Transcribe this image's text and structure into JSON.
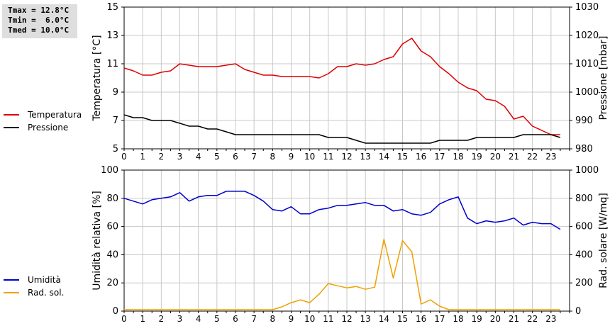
{
  "stats": {
    "lines": [
      "Tmax = 12.8°C",
      "Tmin =  6.0°C",
      "Tmed = 10.0°C"
    ]
  },
  "colors": {
    "temperature": "#dd0000",
    "pressure": "#000000",
    "humidity": "#0000cc",
    "radiation": "#f0a000"
  },
  "chart_data": [
    {
      "type": "line",
      "xlabel": "",
      "x_ticks": [
        "0",
        "1",
        "2",
        "3",
        "4",
        "5",
        "6",
        "7",
        "8",
        "9",
        "10",
        "11",
        "12",
        "13",
        "14",
        "15",
        "16",
        "17",
        "18",
        "19",
        "20",
        "21",
        "22",
        "23"
      ],
      "xlim": [
        0,
        24
      ],
      "ylabel": "Temperatura [°C]",
      "ylim": [
        5,
        15
      ],
      "y_ticks": [
        5,
        7,
        9,
        11,
        13,
        15
      ],
      "y2label": "Pressione [mbar]",
      "y2lim": [
        980,
        1030
      ],
      "y2_ticks": [
        980,
        990,
        1000,
        1010,
        1020,
        1030
      ],
      "grid": true,
      "legend": "left",
      "series": [
        {
          "name": "Temperatura",
          "axis": "left",
          "x": [
            0,
            0.5,
            1,
            1.5,
            2,
            2.5,
            3,
            3.5,
            4,
            4.5,
            5,
            5.5,
            6,
            6.5,
            7,
            7.5,
            8,
            8.5,
            9,
            9.5,
            10,
            10.5,
            11,
            11.5,
            12,
            12.5,
            13,
            13.5,
            14,
            14.5,
            15,
            15.5,
            16,
            16.5,
            17,
            17.5,
            18,
            18.5,
            19,
            19.5,
            20,
            20.5,
            21,
            21.5,
            22,
            22.5,
            23,
            23.5
          ],
          "values": [
            10.7,
            10.5,
            10.2,
            10.2,
            10.4,
            10.5,
            11.0,
            10.9,
            10.8,
            10.8,
            10.8,
            10.9,
            11.0,
            10.6,
            10.4,
            10.2,
            10.2,
            10.1,
            10.1,
            10.1,
            10.1,
            10.0,
            10.3,
            10.8,
            10.8,
            11.0,
            10.9,
            11.0,
            11.3,
            11.5,
            12.4,
            12.8,
            11.9,
            11.5,
            10.8,
            10.3,
            9.7,
            9.3,
            9.1,
            8.5,
            8.4,
            8.0,
            7.1,
            7.3,
            6.6,
            6.3,
            6.0,
            6.0
          ]
        },
        {
          "name": "Pressione",
          "axis": "right",
          "x": [
            0,
            0.5,
            1,
            1.5,
            2,
            2.5,
            3,
            3.5,
            4,
            4.5,
            5,
            5.5,
            6,
            6.5,
            7,
            7.5,
            8,
            8.5,
            9,
            9.5,
            10,
            10.5,
            11,
            11.5,
            12,
            12.5,
            13,
            13.5,
            14,
            14.5,
            15,
            15.5,
            16,
            16.5,
            17,
            17.5,
            18,
            18.5,
            19,
            19.5,
            20,
            20.5,
            21,
            21.5,
            22,
            22.5,
            23,
            23.5
          ],
          "values": [
            992,
            991,
            991,
            990,
            990,
            990,
            989,
            988,
            988,
            987,
            987,
            986,
            985,
            985,
            985,
            985,
            985,
            985,
            985,
            985,
            985,
            985,
            984,
            984,
            984,
            983,
            982,
            982,
            982,
            982,
            982,
            982,
            982,
            982,
            983,
            983,
            983,
            983,
            984,
            984,
            984,
            984,
            984,
            985,
            985,
            985,
            985,
            984
          ]
        }
      ]
    },
    {
      "type": "line",
      "xlabel": "",
      "x_ticks": [
        "0",
        "1",
        "2",
        "3",
        "4",
        "5",
        "6",
        "7",
        "8",
        "9",
        "10",
        "11",
        "12",
        "13",
        "14",
        "15",
        "16",
        "17",
        "18",
        "19",
        "20",
        "21",
        "22",
        "23"
      ],
      "xlim": [
        0,
        24
      ],
      "ylabel": "Umidità relativa [%]",
      "ylim": [
        0,
        100
      ],
      "y_ticks": [
        0,
        20,
        40,
        60,
        80,
        100
      ],
      "y2label": "Rad. solare [W/mq]",
      "y2lim": [
        0,
        1000
      ],
      "y2_ticks": [
        0,
        200,
        400,
        600,
        800,
        1000
      ],
      "grid": true,
      "legend": "left",
      "series": [
        {
          "name": "Umidità",
          "axis": "left",
          "x": [
            0,
            0.5,
            1,
            1.5,
            2,
            2.5,
            3,
            3.5,
            4,
            4.5,
            5,
            5.5,
            6,
            6.5,
            7,
            7.5,
            8,
            8.5,
            9,
            9.5,
            10,
            10.5,
            11,
            11.5,
            12,
            12.5,
            13,
            13.5,
            14,
            14.5,
            15,
            15.5,
            16,
            16.5,
            17,
            17.5,
            18,
            18.5,
            19,
            19.5,
            20,
            20.5,
            21,
            21.5,
            22,
            22.5,
            23,
            23.5
          ],
          "values": [
            80,
            78,
            76,
            79,
            80,
            81,
            84,
            78,
            81,
            82,
            82,
            85,
            85,
            85,
            82,
            78,
            72,
            71,
            74,
            69,
            69,
            72,
            73,
            75,
            75,
            76,
            77,
            75,
            75,
            71,
            72,
            69,
            68,
            70,
            76,
            79,
            81,
            66,
            62,
            64,
            63,
            64,
            66,
            61,
            63,
            62,
            62,
            58
          ]
        },
        {
          "name": "Rad. sol.",
          "axis": "right",
          "x": [
            0,
            0.5,
            1,
            1.5,
            2,
            2.5,
            3,
            3.5,
            4,
            4.5,
            5,
            5.5,
            6,
            6.5,
            7,
            7.5,
            8,
            8.5,
            9,
            9.5,
            10,
            10.5,
            11,
            11.5,
            12,
            12.5,
            13,
            13.5,
            14,
            14.5,
            15,
            15.5,
            16,
            16.5,
            17,
            17.5,
            18,
            18.5,
            19,
            19.5,
            20,
            20.5,
            21,
            21.5,
            22,
            22.5,
            23,
            23.5
          ],
          "values": [
            10,
            10,
            10,
            10,
            10,
            10,
            10,
            10,
            10,
            10,
            10,
            10,
            10,
            10,
            10,
            10,
            10,
            30,
            60,
            80,
            60,
            120,
            195,
            180,
            165,
            175,
            155,
            170,
            510,
            235,
            500,
            420,
            50,
            80,
            35,
            10,
            10,
            10,
            10,
            10,
            10,
            10,
            10,
            10,
            10,
            10,
            10,
            10
          ]
        }
      ]
    }
  ]
}
